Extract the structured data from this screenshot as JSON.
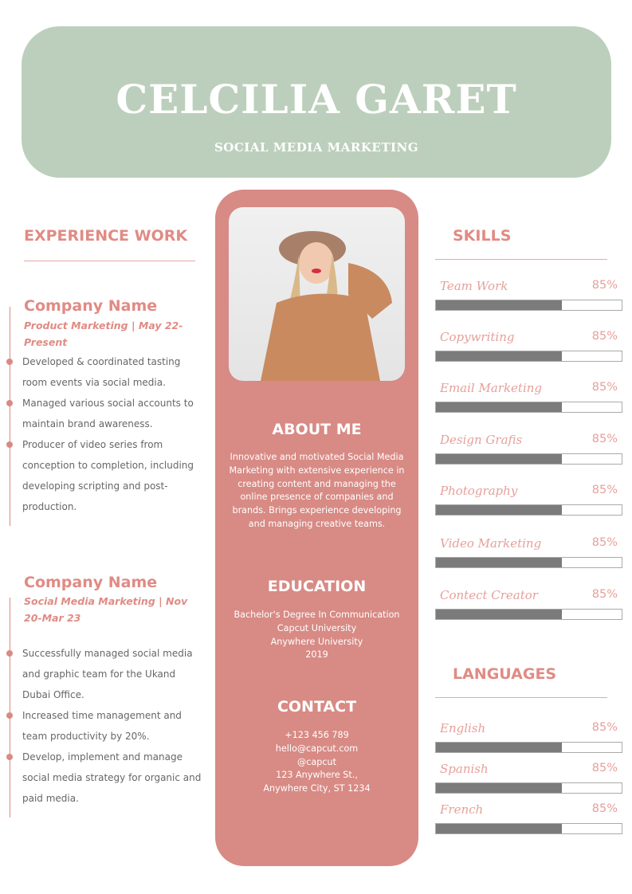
{
  "header": {
    "name": "CELCILIA GARET",
    "role": "SOCIAL MEDIA MARKETING"
  },
  "experience": {
    "title": "EXPERIENCE WORK",
    "jobs": [
      {
        "company": "Company Name",
        "role": "Product Marketing | May 22-Present",
        "bullets": [
          "Developed & coordinated tasting room events via social media.",
          "Managed various social accounts to maintain brand awareness.",
          "Producer of video series from conception to completion, including developing scripting and post-production."
        ]
      },
      {
        "company": "Company Name",
        "role": "Social Media Marketing | Nov 20-Mar 23",
        "bullets": [
          "Successfully managed social media and graphic team for the Ukand Dubai Office.",
          "Increased time management and team productivity by 20%.",
          "Develop, implement and manage social media strategy for organic and paid media."
        ]
      }
    ]
  },
  "about": {
    "title": "ABOUT ME",
    "text": "Innovative and motivated Social Media Marketing with extensive experience in creating content and managing the online presence of companies and brands. Brings experience developing and managing creative teams."
  },
  "education": {
    "title": "EDUCATION",
    "lines": [
      "Bachelor's Degree In Communication",
      "Capcut University",
      "Anywhere University",
      "2019"
    ]
  },
  "contact": {
    "title": "CONTACT",
    "lines": [
      "+123  456 789",
      "hello@capcut.com",
      "@capcut",
      "123 Anywhere St.,",
      "Anywhere City, ST 1234"
    ]
  },
  "skills": {
    "title": "SKILLS",
    "items": [
      {
        "label": "Team Work",
        "pct": "85%",
        "fill": 68
      },
      {
        "label": "Copywriting",
        "pct": "85%",
        "fill": 68
      },
      {
        "label": "Email Marketing",
        "pct": "85%",
        "fill": 68
      },
      {
        "label": "Design Grafis",
        "pct": "85%",
        "fill": 68
      },
      {
        "label": "Photography",
        "pct": "85%",
        "fill": 68
      },
      {
        "label": "Video Marketing",
        "pct": "85%",
        "fill": 68
      },
      {
        "label": "Contect Creator",
        "pct": "85%",
        "fill": 68
      }
    ]
  },
  "languages": {
    "title": "LANGUAGES",
    "items": [
      {
        "label": "English",
        "pct": "85%",
        "fill": 68
      },
      {
        "label": "Spanish",
        "pct": "85%",
        "fill": 68
      },
      {
        "label": "French",
        "pct": "85%",
        "fill": 68
      }
    ]
  },
  "colors": {
    "header": "#bccfbc",
    "accent": "#d88a84",
    "text_accent": "#e08b84",
    "bar": "#7b7b7b"
  }
}
